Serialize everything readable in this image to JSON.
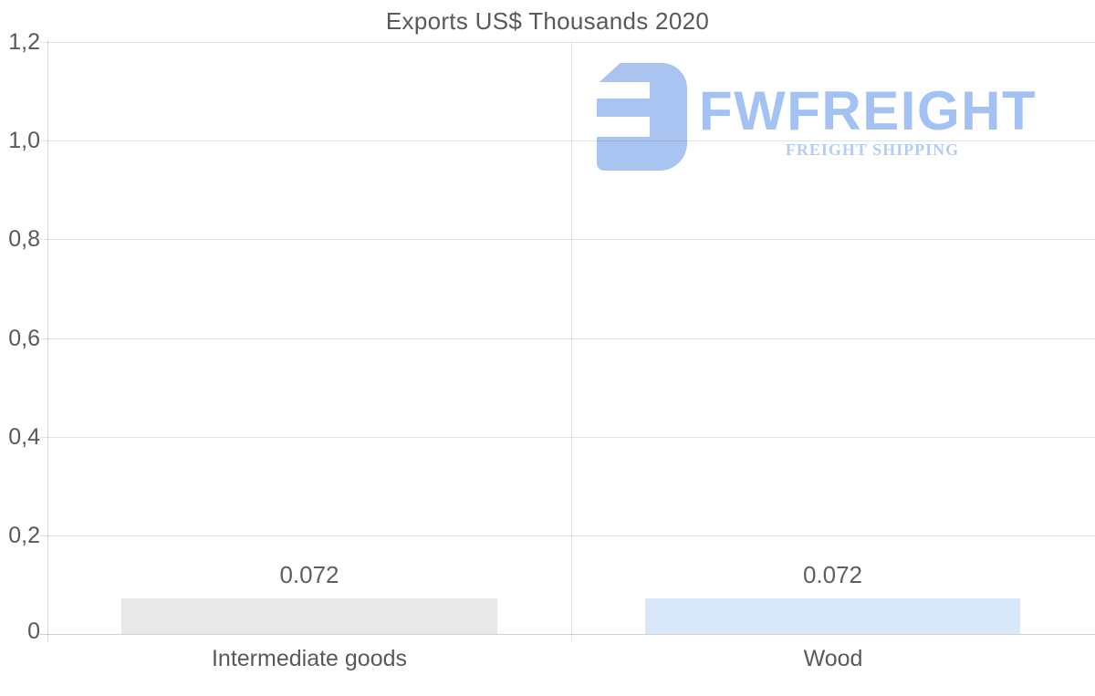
{
  "chart_data": {
    "type": "bar",
    "title": "Exports US$ Thousands 2020",
    "categories": [
      "Intermediate goods",
      "Wood"
    ],
    "values": [
      0.072,
      0.072
    ],
    "value_labels": [
      "0.072",
      "0.072"
    ],
    "bar_colors": [
      "#e9e9e9",
      "#d9e8f8"
    ],
    "ylim": [
      0,
      1.2
    ],
    "yticks_display": [
      "1,2",
      "1,0",
      "0,8",
      "0,6",
      "0,4",
      "0,2",
      "0"
    ],
    "grid": true,
    "legend": "none",
    "xlabel": "",
    "ylabel": ""
  },
  "watermark": {
    "brand": "FWFREIGHT",
    "tagline": "FREIGHT SHIPPING",
    "icon": "f-logo-icon",
    "icon_color": "#a9c4f0",
    "brand_color": "#a3c2f3",
    "tagline_color": "#b5ccf4"
  },
  "colors": {
    "title_text": "#595959",
    "axis_text": "#595959",
    "value_text": "#5f5f5f",
    "gridline": "#e5e5e5",
    "axis_line": "#d3d3d3",
    "background": "#ffffff"
  }
}
